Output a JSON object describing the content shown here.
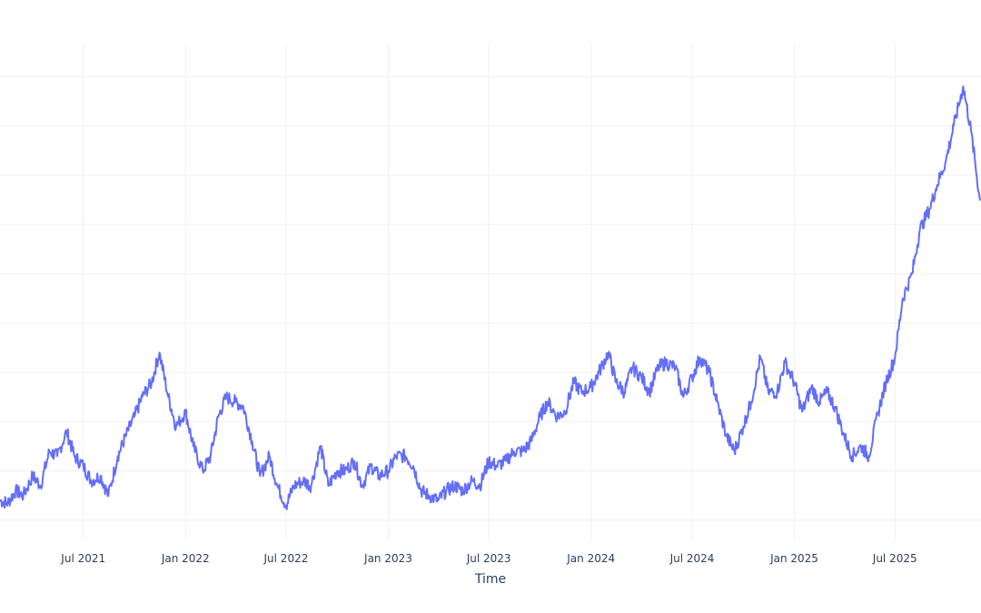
{
  "chart_data": {
    "type": "line",
    "title": "",
    "xlabel": "Time",
    "ylabel": "",
    "grid": true,
    "legend": "none",
    "colors": {
      "series": "#636efa",
      "grid": "#eef1f6",
      "text": "#2a3f5f",
      "background": "#ffffff"
    },
    "xlim": [
      "2021-02-01",
      "2025-12-03"
    ],
    "ylim": [
      0,
      10.5
    ],
    "y_gridlines": [
      0.5,
      1.5,
      2.5,
      3.5,
      4.5,
      5.5,
      6.5,
      7.5,
      8.5,
      9.5
    ],
    "x_ticks": [
      {
        "date": "2021-07-01",
        "label": "Jul 2021"
      },
      {
        "date": "2022-01-01",
        "label": "Jan 2022"
      },
      {
        "date": "2022-07-01",
        "label": "Jul 2022"
      },
      {
        "date": "2023-01-01",
        "label": "Jan 2023"
      },
      {
        "date": "2023-07-01",
        "label": "Jul 2023"
      },
      {
        "date": "2024-01-01",
        "label": "Jan 2024"
      },
      {
        "date": "2024-07-01",
        "label": "Jul 2024"
      },
      {
        "date": "2025-01-01",
        "label": "Jan 2025"
      },
      {
        "date": "2025-07-01",
        "label": "Jul 2025"
      }
    ],
    "series": [
      {
        "x": [
          "2021-02-01",
          "2021-02-15",
          "2021-03-01",
          "2021-03-15",
          "2021-04-01",
          "2021-04-15",
          "2021-05-01",
          "2021-05-15",
          "2021-06-01",
          "2021-06-15",
          "2021-07-01",
          "2021-07-15",
          "2021-08-01",
          "2021-08-15",
          "2021-09-01",
          "2021-09-15",
          "2021-10-01",
          "2021-10-15",
          "2021-11-01",
          "2021-11-15",
          "2021-12-01",
          "2021-12-15",
          "2022-01-01",
          "2022-01-15",
          "2022-02-01",
          "2022-02-15",
          "2022-03-01",
          "2022-03-15",
          "2022-04-01",
          "2022-04-15",
          "2022-05-01",
          "2022-05-15",
          "2022-06-01",
          "2022-06-15",
          "2022-07-01",
          "2022-07-15",
          "2022-08-01",
          "2022-08-15",
          "2022-09-01",
          "2022-09-15",
          "2022-10-01",
          "2022-10-15",
          "2022-11-01",
          "2022-11-15",
          "2022-12-01",
          "2022-12-15",
          "2023-01-01",
          "2023-01-15",
          "2023-02-01",
          "2023-02-15",
          "2023-03-01",
          "2023-03-15",
          "2023-04-01",
          "2023-04-15",
          "2023-05-01",
          "2023-05-15",
          "2023-06-01",
          "2023-06-15",
          "2023-07-01",
          "2023-07-15",
          "2023-08-01",
          "2023-08-15",
          "2023-09-01",
          "2023-09-15",
          "2023-10-01",
          "2023-10-15",
          "2023-11-01",
          "2023-11-15",
          "2023-12-01",
          "2023-12-15",
          "2024-01-01",
          "2024-01-15",
          "2024-02-01",
          "2024-02-15",
          "2024-03-01",
          "2024-03-15",
          "2024-04-01",
          "2024-04-15",
          "2024-05-01",
          "2024-05-15",
          "2024-06-01",
          "2024-06-15",
          "2024-07-01",
          "2024-07-15",
          "2024-08-01",
          "2024-08-15",
          "2024-09-01",
          "2024-09-15",
          "2024-10-01",
          "2024-10-15",
          "2024-11-01",
          "2024-11-15",
          "2024-12-01",
          "2024-12-15",
          "2025-01-01",
          "2025-01-15",
          "2025-02-01",
          "2025-02-15",
          "2025-03-01",
          "2025-03-15",
          "2025-04-01",
          "2025-04-15",
          "2025-05-01",
          "2025-05-15",
          "2025-06-01",
          "2025-06-15",
          "2025-07-01",
          "2025-07-15",
          "2025-08-01",
          "2025-08-15",
          "2025-09-01",
          "2025-09-15",
          "2025-10-01",
          "2025-10-15",
          "2025-11-01",
          "2025-11-15",
          "2025-12-01"
        ],
        "y": [
          0.9,
          0.85,
          1.1,
          1.0,
          1.4,
          1.2,
          1.9,
          1.8,
          2.3,
          1.8,
          1.6,
          1.3,
          1.4,
          1.0,
          1.8,
          2.2,
          2.6,
          3.0,
          3.3,
          3.9,
          3.0,
          2.4,
          2.7,
          2.0,
          1.5,
          1.8,
          2.6,
          3.0,
          2.9,
          2.8,
          2.1,
          1.4,
          1.8,
          1.2,
          0.8,
          1.2,
          1.3,
          1.2,
          2.0,
          1.2,
          1.5,
          1.5,
          1.7,
          1.2,
          1.6,
          1.4,
          1.5,
          1.8,
          1.8,
          1.6,
          1.1,
          1.0,
          0.9,
          1.1,
          1.2,
          1.1,
          1.3,
          1.2,
          1.7,
          1.6,
          1.7,
          1.9,
          1.9,
          2.1,
          2.6,
          2.9,
          2.6,
          2.7,
          3.3,
          3.1,
          3.2,
          3.5,
          3.9,
          3.3,
          3.1,
          3.6,
          3.4,
          3.1,
          3.6,
          3.7,
          3.6,
          3.0,
          3.4,
          3.8,
          3.5,
          2.9,
          2.2,
          1.9,
          2.4,
          2.9,
          3.8,
          3.1,
          3.1,
          3.7,
          3.3,
          2.7,
          3.2,
          2.9,
          3.1,
          2.8,
          2.2,
          1.8,
          2.0,
          1.8,
          2.7,
          3.3,
          3.8,
          5.0,
          5.5,
          6.4,
          6.8,
          7.3,
          7.8,
          8.5,
          9.3,
          8.4,
          7.0
        ],
        "name": ""
      }
    ]
  }
}
